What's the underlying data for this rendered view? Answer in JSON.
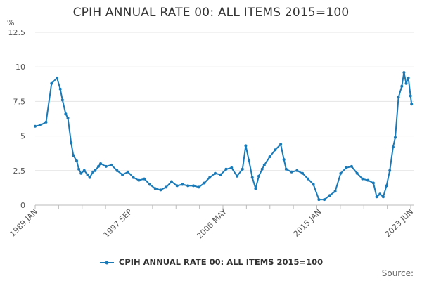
{
  "chart_data": {
    "type": "line",
    "title": "CPIH ANNUAL RATE 00: ALL ITEMS 2015=100",
    "ylabel": "%",
    "xlabel": "",
    "ylim": [
      0,
      12.5
    ],
    "yticks": [
      "0",
      "2.5",
      "5",
      "7.5",
      "10",
      "12.5"
    ],
    "xticks": [
      "1989 JAN",
      "1997 SEP",
      "2006 MAY",
      "2015 JAN",
      "2023 JUN"
    ],
    "grid": true,
    "legend_position": "bottom",
    "series": [
      {
        "name": "CPIH ANNUAL RATE 00: ALL ITEMS 2015=100",
        "color": "#1a7ab8",
        "x": [
          1989.0,
          1989.5,
          1990.0,
          1990.5,
          1991.0,
          1991.3,
          1991.5,
          1991.8,
          1992.0,
          1992.3,
          1992.5,
          1992.8,
          1993.0,
          1993.2,
          1993.5,
          1993.8,
          1994.0,
          1994.3,
          1994.5,
          1994.8,
          1995.0,
          1995.5,
          1996.0,
          1996.5,
          1997.0,
          1997.5,
          1998.0,
          1998.5,
          1999.0,
          1999.5,
          2000.0,
          2000.5,
          2001.0,
          2001.5,
          2002.0,
          2002.5,
          2003.0,
          2003.5,
          2004.0,
          2004.5,
          2005.0,
          2005.5,
          2006.0,
          2006.5,
          2007.0,
          2007.5,
          2008.0,
          2008.3,
          2008.6,
          2008.9,
          2009.2,
          2009.5,
          2009.8,
          2010.0,
          2010.5,
          2011.0,
          2011.5,
          2011.8,
          2012.0,
          2012.5,
          2013.0,
          2013.5,
          2014.0,
          2014.5,
          2015.0,
          2015.5,
          2016.0,
          2016.5,
          2017.0,
          2017.5,
          2018.0,
          2018.5,
          2019.0,
          2019.5,
          2020.0,
          2020.3,
          2020.6,
          2020.9,
          2021.2,
          2021.5,
          2021.8,
          2022.0,
          2022.3,
          2022.6,
          2022.8,
          2023.0,
          2023.2,
          2023.4,
          2023.5
        ],
        "values": [
          5.7,
          5.8,
          6.0,
          8.8,
          9.2,
          8.4,
          7.6,
          6.6,
          6.3,
          4.5,
          3.6,
          3.2,
          2.6,
          2.3,
          2.5,
          2.2,
          2.0,
          2.4,
          2.5,
          2.8,
          3.0,
          2.8,
          2.9,
          2.5,
          2.2,
          2.4,
          2.0,
          1.8,
          1.9,
          1.5,
          1.2,
          1.1,
          1.3,
          1.7,
          1.4,
          1.5,
          1.4,
          1.4,
          1.3,
          1.6,
          2.0,
          2.3,
          2.2,
          2.6,
          2.7,
          2.1,
          2.6,
          4.3,
          3.2,
          2.0,
          1.2,
          2.1,
          2.6,
          2.9,
          3.5,
          4.0,
          4.4,
          3.3,
          2.6,
          2.4,
          2.5,
          2.3,
          1.9,
          1.5,
          0.4,
          0.4,
          0.7,
          1.0,
          2.3,
          2.7,
          2.8,
          2.3,
          1.9,
          1.8,
          1.6,
          0.6,
          0.8,
          0.6,
          1.4,
          2.5,
          4.2,
          4.9,
          7.8,
          8.6,
          9.6,
          8.8,
          9.2,
          7.9,
          7.3
        ]
      }
    ]
  },
  "source_label": "Source:"
}
